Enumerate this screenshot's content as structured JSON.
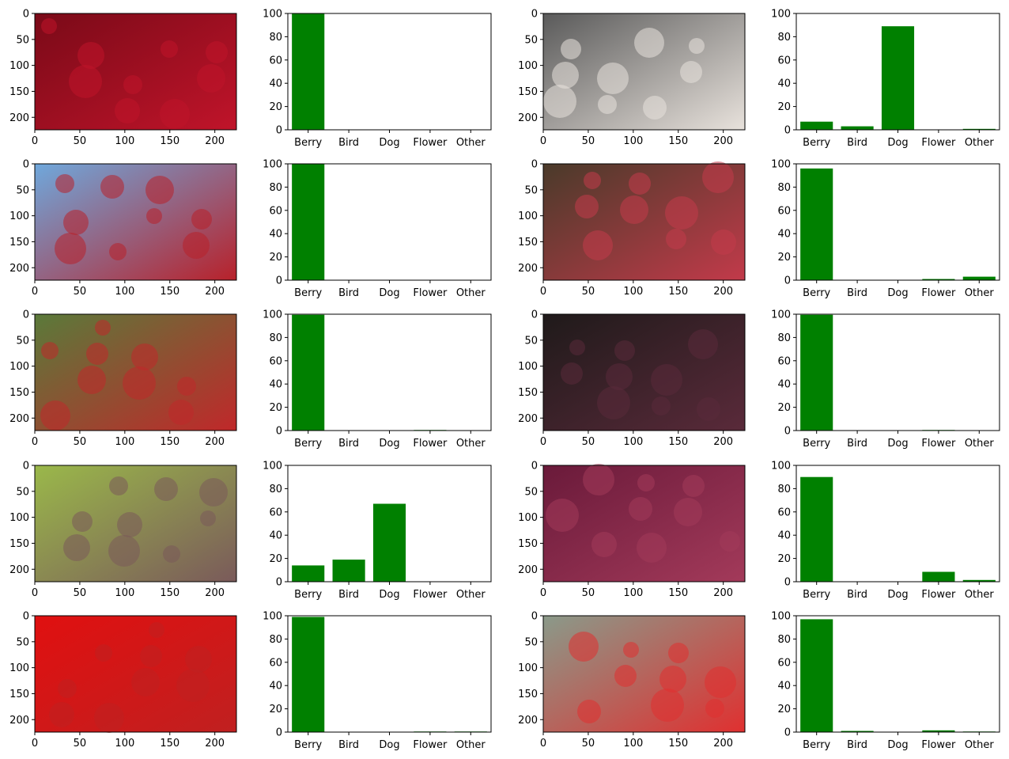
{
  "image_axes": {
    "ticks": [
      0,
      50,
      100,
      150,
      200
    ],
    "x_range": [
      0,
      224
    ],
    "y_range": [
      224,
      0
    ]
  },
  "bar_style": {
    "color": "#008000",
    "ylim": [
      0,
      100
    ],
    "yticks": [
      0,
      20,
      40,
      60,
      80,
      100
    ]
  },
  "categories": [
    "Berry",
    "Bird",
    "Dog",
    "Flower",
    "Other"
  ],
  "chart_data": [
    {
      "type": "bar",
      "categories": [
        "Berry",
        "Bird",
        "Dog",
        "Flower",
        "Other"
      ],
      "values": [
        99.8,
        0.0,
        0.0,
        0.1,
        0.1
      ],
      "ylim": [
        0,
        100
      ]
    },
    {
      "type": "bar",
      "categories": [
        "Berry",
        "Bird",
        "Dog",
        "Flower",
        "Other"
      ],
      "values": [
        7.0,
        3.0,
        89.0,
        0.2,
        0.8
      ],
      "ylim": [
        0,
        100
      ]
    },
    {
      "type": "bar",
      "categories": [
        "Berry",
        "Bird",
        "Dog",
        "Flower",
        "Other"
      ],
      "values": [
        99.9,
        0.0,
        0.0,
        0.0,
        0.1
      ],
      "ylim": [
        0,
        100
      ]
    },
    {
      "type": "bar",
      "categories": [
        "Berry",
        "Bird",
        "Dog",
        "Flower",
        "Other"
      ],
      "values": [
        96.0,
        0.0,
        0.0,
        1.0,
        3.0
      ],
      "ylim": [
        0,
        100
      ]
    },
    {
      "type": "bar",
      "categories": [
        "Berry",
        "Bird",
        "Dog",
        "Flower",
        "Other"
      ],
      "values": [
        99.5,
        0.0,
        0.0,
        0.5,
        0.0
      ],
      "ylim": [
        0,
        100
      ]
    },
    {
      "type": "bar",
      "categories": [
        "Berry",
        "Bird",
        "Dog",
        "Flower",
        "Other"
      ],
      "values": [
        99.5,
        0.0,
        0.0,
        0.5,
        0.0
      ],
      "ylim": [
        0,
        100
      ]
    },
    {
      "type": "bar",
      "categories": [
        "Berry",
        "Bird",
        "Dog",
        "Flower",
        "Other"
      ],
      "values": [
        14.0,
        19.0,
        67.0,
        0.0,
        0.0
      ],
      "ylim": [
        0,
        100
      ]
    },
    {
      "type": "bar",
      "categories": [
        "Berry",
        "Bird",
        "Dog",
        "Flower",
        "Other"
      ],
      "values": [
        90.0,
        0.0,
        0.0,
        8.5,
        1.5
      ],
      "ylim": [
        0,
        100
      ]
    },
    {
      "type": "bar",
      "categories": [
        "Berry",
        "Bird",
        "Dog",
        "Flower",
        "Other"
      ],
      "values": [
        99.0,
        0.0,
        0.0,
        0.5,
        0.5
      ],
      "ylim": [
        0,
        100
      ]
    },
    {
      "type": "bar",
      "categories": [
        "Berry",
        "Bird",
        "Dog",
        "Flower",
        "Other"
      ],
      "values": [
        97.0,
        1.0,
        0.0,
        1.5,
        0.5
      ],
      "ylim": [
        0,
        100
      ]
    }
  ],
  "photos": [
    {
      "name": "cranberries-photo",
      "colors": [
        "#7a0a18",
        "#c0142a"
      ]
    },
    {
      "name": "cherries-in-milk-photo",
      "colors": [
        "#5a5a5a",
        "#e8e2dc"
      ]
    },
    {
      "name": "hawthorn-berries-sky-photo",
      "colors": [
        "#6fa8dc",
        "#b8212a"
      ]
    },
    {
      "name": "raspberry-bush-photo",
      "colors": [
        "#4a3a2a",
        "#c23a4a"
      ]
    },
    {
      "name": "hawthorn-berries-branch-photo",
      "colors": [
        "#5a7a3a",
        "#c0282a"
      ]
    },
    {
      "name": "elderberries-photo",
      "colors": [
        "#1f1a1a",
        "#5a2a3a"
      ]
    },
    {
      "name": "grapes-photo",
      "colors": [
        "#9ab84a",
        "#7a5a5a"
      ]
    },
    {
      "name": "raspberries-closeup-photo",
      "colors": [
        "#6a1a3a",
        "#a33a5a"
      ]
    },
    {
      "name": "strawberry-photo",
      "colors": [
        "#e01010",
        "#c02020"
      ]
    },
    {
      "name": "yew-berries-photo",
      "colors": [
        "#8a9a8a",
        "#e03030"
      ]
    }
  ]
}
